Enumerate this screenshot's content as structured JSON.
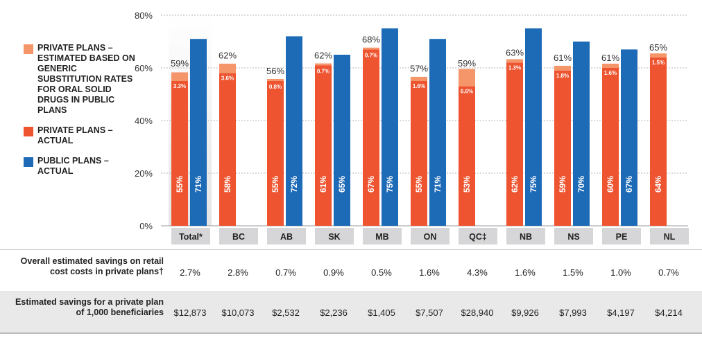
{
  "legend": [
    {
      "label": "PRIVATE PLANS – ESTIMATED BASED ON GENERIC SUBSTITUTION RATES FOR ORAL SOLID DRUGS IN PUBLIC PLANS",
      "color": "#f5956a"
    },
    {
      "label": "PRIVATE PLANS – ACTUAL",
      "color": "#ee5430"
    },
    {
      "label": "PUBLIC PLANS – ACTUAL",
      "color": "#1d6ab6"
    }
  ],
  "chart_data": {
    "type": "bar",
    "categories": [
      "Total*",
      "BC",
      "AB",
      "SK",
      "MB",
      "ON",
      "QC‡",
      "NB",
      "NS",
      "PE",
      "NL"
    ],
    "ylim": [
      0,
      80
    ],
    "yticks": [
      "0%",
      "20%",
      "40%",
      "60%",
      "80%"
    ],
    "series": [
      {
        "name": "PRIVATE PLANS – ACTUAL",
        "values": [
          55,
          58,
          55,
          61,
          67,
          55,
          53,
          62,
          59,
          60,
          64
        ],
        "labels": [
          "55%",
          "58%",
          "55%",
          "61%",
          "67%",
          "55%",
          "53%",
          "62%",
          "59%",
          "60%",
          "64%"
        ]
      },
      {
        "name": "PRIVATE PLANS – ESTIMATED BASED ON GENERIC SUBSTITUTION RATES FOR ORAL SOLID DRUGS IN PUBLIC PLANS",
        "values": [
          3.3,
          3.6,
          0.8,
          0.7,
          0.7,
          1.6,
          6.6,
          1.3,
          1.8,
          1.6,
          1.5
        ],
        "labels": [
          "3.3%",
          "3.6%",
          "0.8%",
          "0.7%",
          "0.7%",
          "1.6%",
          "6.6%",
          "1.3%",
          "1.8%",
          "1.6%",
          "1.5%"
        ]
      },
      {
        "name": "PUBLIC PLANS – ACTUAL",
        "values": [
          71,
          null,
          72,
          65,
          75,
          71,
          null,
          75,
          70,
          67,
          null
        ],
        "labels": [
          "71%",
          null,
          "72%",
          "65%",
          "75%",
          "71%",
          null,
          "75%",
          "70%",
          "67%",
          null
        ]
      }
    ],
    "totals": [
      59,
      62,
      56,
      62,
      68,
      57,
      59,
      63,
      61,
      61,
      65
    ],
    "total_labels": [
      "59%",
      "62%",
      "56%",
      "62%",
      "68%",
      "57%",
      "59%",
      "63%",
      "61%",
      "61%",
      "65%"
    ],
    "grid": true
  },
  "table": {
    "row1_label": "Overall estimated savings on retail cost costs in private plans†",
    "row1_values": [
      "2.7%",
      "2.8%",
      "0.7%",
      "0.9%",
      "0.5%",
      "1.6%",
      "4.3%",
      "1.6%",
      "1.5%",
      "1.0%",
      "0.7%"
    ],
    "row2_label": "Estimated savings for a private plan of 1,000 beneficiaries",
    "row2_values": [
      "$12,873",
      "$10,073",
      "$2,532",
      "$2,236",
      "$1,405",
      "$7,507",
      "$28,940",
      "$9,926",
      "$7,993",
      "$4,197",
      "$4,214"
    ]
  }
}
